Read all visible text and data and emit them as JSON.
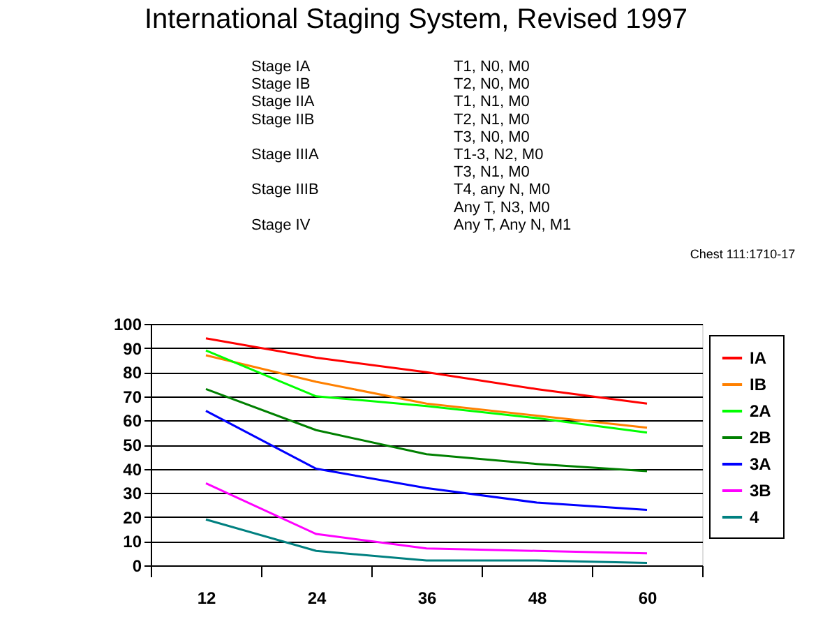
{
  "chart_data": {
    "type": "line",
    "title": "International Staging System, Revised 1997",
    "annotations": [
      "Stage IA",
      "T1, N0, M0",
      "Stage IB",
      "T2, N0, M0",
      "Stage IIA",
      "T1, N1, M0",
      "Stage IIB",
      "T2, N1, M0",
      "T3, N0, M0",
      "Stage IIIA",
      "T1-3, N2, M0",
      "T3, N1, M0",
      "Stage IIIB",
      "T4, any N, M0",
      "Any T, N3, M0",
      "Stage IV",
      "Any T, Any N, M1",
      "Chest 111:1710-17"
    ],
    "categories": [
      "12",
      "24",
      "36",
      "48",
      "60"
    ],
    "series": [
      {
        "name": "IA",
        "color": "#ff0000",
        "values": [
          94,
          86,
          80,
          73,
          67
        ]
      },
      {
        "name": "IB",
        "color": "#ff8000",
        "values": [
          87,
          76,
          67,
          62,
          57
        ]
      },
      {
        "name": "2A",
        "color": "#00ff00",
        "values": [
          89,
          70,
          66,
          61,
          55
        ]
      },
      {
        "name": "2B",
        "color": "#008000",
        "values": [
          73,
          56,
          46,
          42,
          39
        ]
      },
      {
        "name": "3A",
        "color": "#0000ff",
        "values": [
          64,
          40,
          32,
          26,
          23
        ]
      },
      {
        "name": "3B",
        "color": "#ff00ff",
        "values": [
          34,
          13,
          7,
          6,
          5
        ]
      },
      {
        "name": "4",
        "color": "#008080",
        "values": [
          19,
          6,
          2,
          2,
          1
        ]
      }
    ],
    "ylim": [
      0,
      100
    ],
    "yticks": [
      0,
      10,
      20,
      30,
      40,
      50,
      60,
      70,
      80,
      90,
      100
    ],
    "grid": "y",
    "legend": "right",
    "marker": "none",
    "line_style": "solid"
  }
}
